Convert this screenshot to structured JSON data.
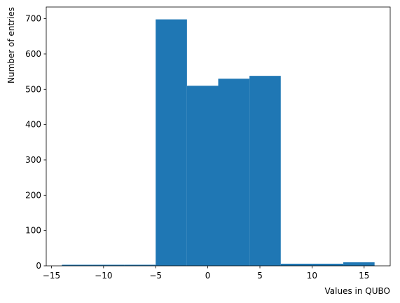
{
  "chart_data": {
    "type": "histogram",
    "xlabel": "Values in QUBO",
    "ylabel": "Number of entries",
    "bins": [
      -14,
      -11,
      -8,
      -5,
      -2,
      1,
      4,
      7,
      10,
      13,
      16
    ],
    "values": [
      3,
      3,
      3,
      698,
      510,
      530,
      538,
      6,
      6,
      10
    ],
    "color": "#1f77b4",
    "xlim": [
      -15.5,
      17.5
    ],
    "xticks": [
      {
        "value": -15,
        "label": "−15"
      },
      {
        "value": -10,
        "label": "−10"
      },
      {
        "value": -5,
        "label": "−5"
      },
      0,
      5,
      10,
      15
    ],
    "ylim": [
      0,
      733
    ],
    "yticks": [
      0,
      100,
      200,
      300,
      400,
      500,
      600,
      700
    ]
  }
}
